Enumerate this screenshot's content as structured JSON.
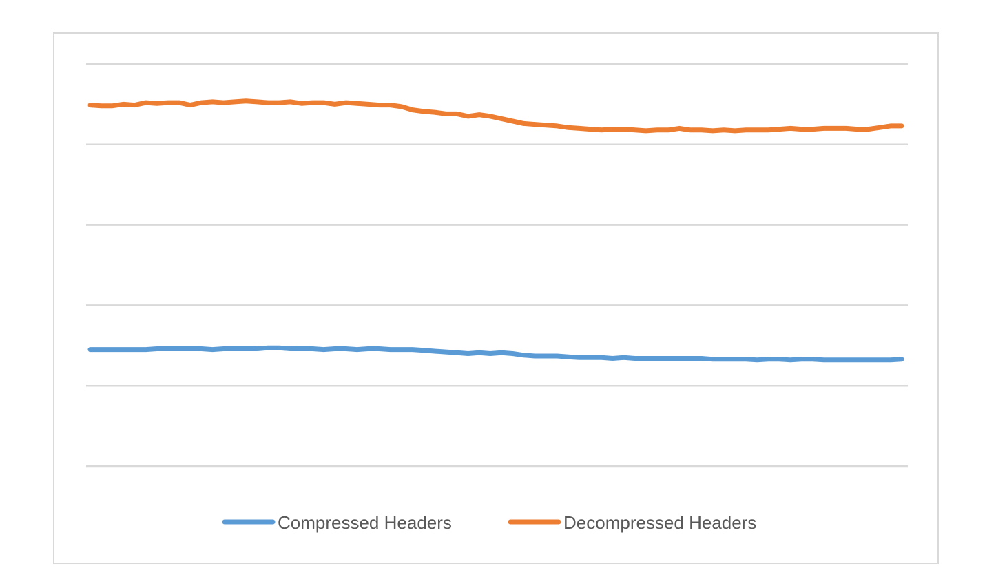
{
  "chart_data": {
    "type": "line",
    "title": "",
    "xlabel": "",
    "ylabel": "",
    "ylim": [
      0,
      5
    ],
    "gridlines": [
      0,
      1,
      2,
      3,
      4,
      5
    ],
    "grid": true,
    "axis_tick_labels_shown": false,
    "legend_position": "bottom",
    "series": [
      {
        "name": "Compressed Headers",
        "color": "#5b9bd5",
        "values": [
          1.45,
          1.45,
          1.45,
          1.45,
          1.45,
          1.45,
          1.46,
          1.46,
          1.46,
          1.46,
          1.46,
          1.45,
          1.46,
          1.46,
          1.46,
          1.46,
          1.47,
          1.47,
          1.46,
          1.46,
          1.46,
          1.45,
          1.46,
          1.46,
          1.45,
          1.46,
          1.46,
          1.45,
          1.45,
          1.45,
          1.44,
          1.43,
          1.42,
          1.41,
          1.4,
          1.41,
          1.4,
          1.41,
          1.4,
          1.38,
          1.37,
          1.37,
          1.37,
          1.36,
          1.35,
          1.35,
          1.35,
          1.34,
          1.35,
          1.34,
          1.34,
          1.34,
          1.34,
          1.34,
          1.34,
          1.34,
          1.33,
          1.33,
          1.33,
          1.33,
          1.32,
          1.33,
          1.33,
          1.32,
          1.33,
          1.33,
          1.32,
          1.32,
          1.32,
          1.32,
          1.32,
          1.32,
          1.32,
          1.33
        ]
      },
      {
        "name": "Decompressed Headers",
        "color": "#ed7d31",
        "values": [
          4.49,
          4.48,
          4.48,
          4.5,
          4.49,
          4.52,
          4.51,
          4.52,
          4.52,
          4.49,
          4.52,
          4.53,
          4.52,
          4.53,
          4.54,
          4.53,
          4.52,
          4.52,
          4.53,
          4.51,
          4.52,
          4.52,
          4.5,
          4.52,
          4.51,
          4.5,
          4.49,
          4.49,
          4.47,
          4.43,
          4.41,
          4.4,
          4.38,
          4.38,
          4.35,
          4.37,
          4.35,
          4.32,
          4.29,
          4.26,
          4.25,
          4.24,
          4.23,
          4.21,
          4.2,
          4.19,
          4.18,
          4.19,
          4.19,
          4.18,
          4.17,
          4.18,
          4.18,
          4.2,
          4.18,
          4.18,
          4.17,
          4.18,
          4.17,
          4.18,
          4.18,
          4.18,
          4.19,
          4.2,
          4.19,
          4.19,
          4.2,
          4.2,
          4.2,
          4.19,
          4.19,
          4.21,
          4.23,
          4.23
        ]
      }
    ]
  }
}
